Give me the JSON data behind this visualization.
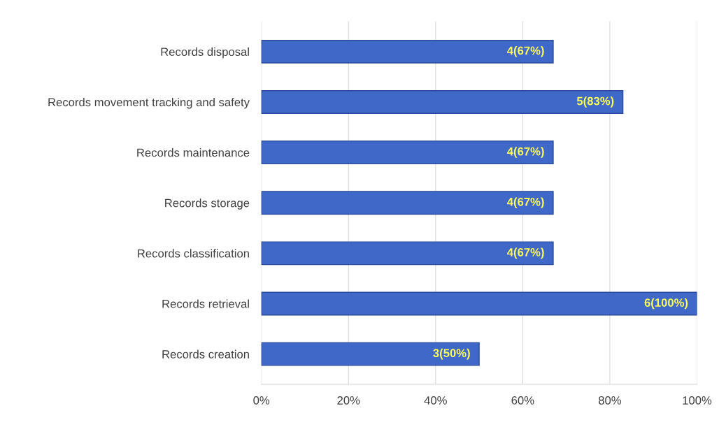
{
  "chart_data": {
    "type": "bar",
    "orientation": "horizontal",
    "categories": [
      "Records disposal",
      "Records movement tracking and safety",
      "Records maintenance",
      "Records storage",
      "Records classification",
      "Records retrieval",
      "Records creation"
    ],
    "values": [
      67,
      83,
      67,
      67,
      67,
      100,
      50
    ],
    "value_labels": [
      "4(67%)",
      "5(83%)",
      "4(67%)",
      "4(67%)",
      "4(67%)",
      "6(100%)",
      "3(50%)"
    ],
    "color": "#3f68c8",
    "xlim": [
      0,
      100
    ],
    "xticks": [
      {
        "value": 0,
        "label": "0%"
      },
      {
        "value": 20,
        "label": "20%"
      },
      {
        "value": 40,
        "label": "40%"
      },
      {
        "value": 60,
        "label": "60%"
      },
      {
        "value": 80,
        "label": "80%"
      },
      {
        "value": 100,
        "label": "100%"
      }
    ],
    "grid": "x",
    "legend": false
  }
}
